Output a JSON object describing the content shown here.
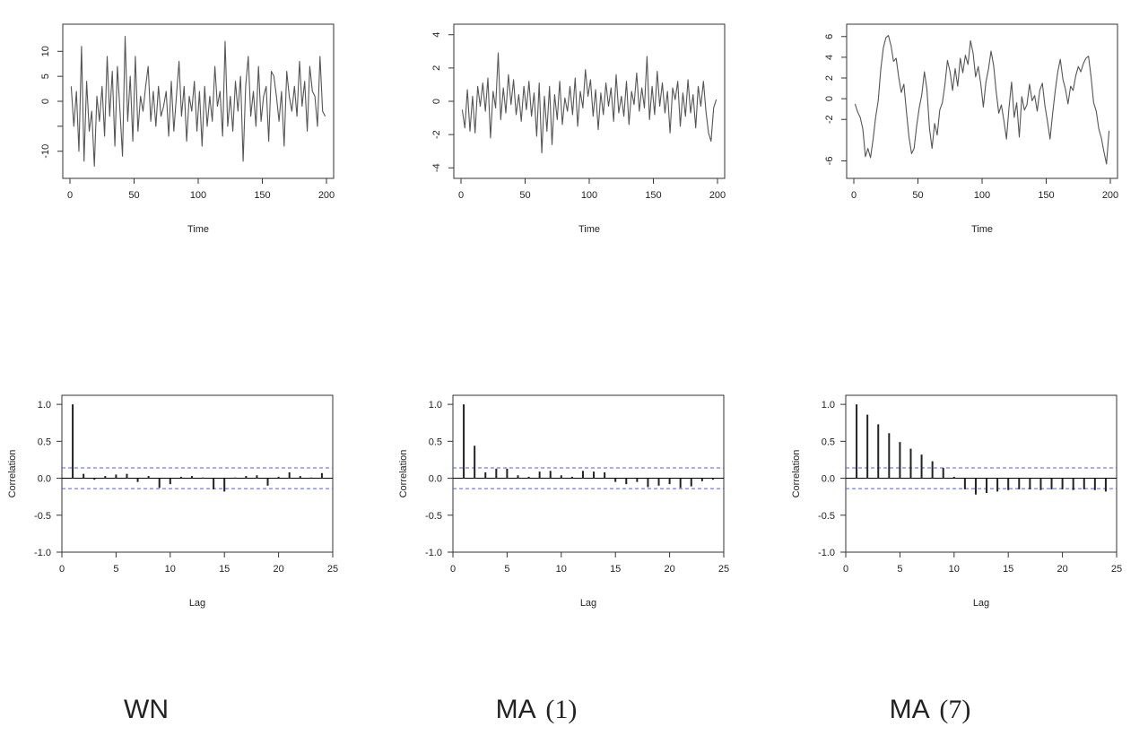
{
  "captions": [
    {
      "text": "WN"
    },
    {
      "text": "MA",
      "paren": "(1)"
    },
    {
      "text": "MA",
      "paren": "(7)"
    }
  ],
  "chart_data": [
    {
      "type": "line",
      "xlabel": "Time",
      "ylabel": "",
      "xlim": [
        0,
        200
      ],
      "ylim": [
        -14,
        14
      ],
      "xticks": [
        0,
        50,
        100,
        150,
        200
      ],
      "yticks": [
        -10,
        -5,
        0,
        5,
        10
      ],
      "yticklabels": [
        "-10",
        "",
        "0",
        "5",
        "10"
      ],
      "x": [
        1,
        3,
        5,
        7,
        9,
        11,
        13,
        15,
        17,
        19,
        21,
        23,
        25,
        27,
        29,
        31,
        33,
        35,
        37,
        39,
        41,
        43,
        45,
        47,
        49,
        51,
        53,
        55,
        57,
        59,
        61,
        63,
        65,
        67,
        69,
        71,
        73,
        75,
        77,
        79,
        81,
        83,
        85,
        87,
        89,
        91,
        93,
        95,
        97,
        99,
        101,
        103,
        105,
        107,
        109,
        111,
        113,
        115,
        117,
        119,
        121,
        123,
        125,
        127,
        129,
        131,
        133,
        135,
        137,
        139,
        141,
        143,
        145,
        147,
        149,
        151,
        153,
        155,
        157,
        159,
        161,
        163,
        165,
        167,
        169,
        171,
        173,
        175,
        177,
        179,
        181,
        183,
        185,
        187,
        189,
        191,
        193,
        195,
        197,
        199
      ],
      "y": [
        3,
        -5,
        2,
        -10,
        11,
        -12,
        4,
        -6,
        -2,
        -13,
        1,
        -4,
        3,
        -7,
        9,
        -3,
        6,
        -9,
        7,
        -2,
        -11,
        13,
        -4,
        5,
        -8,
        9,
        -6,
        1,
        -2,
        3,
        7,
        -4,
        2,
        -5,
        3,
        -3,
        -1,
        2,
        -7,
        4,
        -6,
        1,
        8,
        -3,
        3,
        -8,
        1,
        -2,
        4,
        -6,
        2,
        -9,
        3,
        -5,
        1,
        -4,
        7,
        -1,
        2,
        -7,
        12,
        -5,
        1,
        -6,
        4,
        -2,
        5,
        -12,
        3,
        9,
        -3,
        2,
        -5,
        7,
        -4,
        1,
        3,
        -8,
        6,
        5,
        1,
        -4,
        2,
        -9,
        6,
        1,
        -2,
        3,
        -3,
        8,
        -1,
        4,
        -6,
        7,
        2,
        1,
        -5,
        9,
        -2,
        -3
      ]
    },
    {
      "type": "line",
      "xlabel": "Time",
      "ylabel": "",
      "xlim": [
        0,
        200
      ],
      "ylim": [
        -4.2,
        4.2
      ],
      "xticks": [
        0,
        50,
        100,
        150,
        200
      ],
      "yticks": [
        -4,
        -2,
        0,
        2,
        4
      ],
      "x": [
        1,
        3,
        5,
        7,
        9,
        11,
        13,
        15,
        17,
        19,
        21,
        23,
        25,
        27,
        29,
        31,
        33,
        35,
        37,
        39,
        41,
        43,
        45,
        47,
        49,
        51,
        53,
        55,
        57,
        59,
        61,
        63,
        65,
        67,
        69,
        71,
        73,
        75,
        77,
        79,
        81,
        83,
        85,
        87,
        89,
        91,
        93,
        95,
        97,
        99,
        101,
        103,
        105,
        107,
        109,
        111,
        113,
        115,
        117,
        119,
        121,
        123,
        125,
        127,
        129,
        131,
        133,
        135,
        137,
        139,
        141,
        143,
        145,
        147,
        149,
        151,
        153,
        155,
        157,
        159,
        161,
        163,
        165,
        167,
        169,
        171,
        173,
        175,
        177,
        179,
        181,
        183,
        185,
        187,
        189,
        191,
        193,
        195,
        197,
        199
      ],
      "y": [
        -0.5,
        -1.6,
        0.7,
        -1.8,
        0.3,
        -1.9,
        0.9,
        -0.3,
        1.1,
        -0.6,
        1.4,
        -2.2,
        0.6,
        -0.4,
        2.9,
        -1.1,
        0.8,
        -0.7,
        1.6,
        -0.2,
        1.3,
        -0.8,
        0.4,
        -1.2,
        0.9,
        -0.5,
        1.2,
        -0.9,
        0.5,
        -2.1,
        1.1,
        -3.1,
        0.3,
        -1.8,
        0.9,
        -2.6,
        0.4,
        -1.1,
        1.2,
        -1.4,
        0.2,
        -0.6,
        0.9,
        -0.8,
        1.4,
        -1.5,
        0.6,
        -0.4,
        1.9,
        0.3,
        1.3,
        -0.9,
        0.7,
        -1.7,
        0.5,
        -0.8,
        1.1,
        -0.3,
        0.8,
        -1.2,
        1.6,
        -0.7,
        0.3,
        -0.9,
        1.2,
        -1.4,
        0.6,
        -0.2,
        1.7,
        -0.6,
        0.8,
        -0.4,
        2.7,
        -1.1,
        0.9,
        -0.8,
        1.8,
        -0.3,
        1.1,
        -0.7,
        0.6,
        -1.9,
        0.8,
        0.1,
        1.2,
        -1.5,
        0.5,
        -0.9,
        1.3,
        -0.7,
        0.4,
        -1.6,
        0.9,
        -0.3,
        1.2,
        -0.6,
        -1.9,
        -2.4,
        -0.4,
        0.1
      ]
    },
    {
      "type": "line",
      "xlabel": "Time",
      "ylabel": "",
      "xlim": [
        0,
        200
      ],
      "ylim": [
        -7,
        6.5
      ],
      "xticks": [
        0,
        50,
        100,
        150,
        200
      ],
      "yticks": [
        -6,
        -2,
        0,
        2,
        4,
        6
      ],
      "x": [
        1,
        3,
        5,
        7,
        9,
        11,
        13,
        15,
        17,
        19,
        21,
        23,
        25,
        27,
        29,
        31,
        33,
        35,
        37,
        39,
        41,
        43,
        45,
        47,
        49,
        51,
        53,
        55,
        57,
        59,
        61,
        63,
        65,
        67,
        69,
        71,
        73,
        75,
        77,
        79,
        81,
        83,
        85,
        87,
        89,
        91,
        93,
        95,
        97,
        99,
        101,
        103,
        105,
        107,
        109,
        111,
        113,
        115,
        117,
        119,
        121,
        123,
        125,
        127,
        129,
        131,
        133,
        135,
        137,
        139,
        141,
        143,
        145,
        147,
        149,
        151,
        153,
        155,
        157,
        159,
        161,
        163,
        165,
        167,
        169,
        171,
        173,
        175,
        177,
        179,
        181,
        183,
        185,
        187,
        189,
        191,
        193,
        195,
        197,
        199
      ],
      "y": [
        -0.5,
        -1.3,
        -1.8,
        -2.9,
        -5.6,
        -4.8,
        -5.7,
        -3.9,
        -1.8,
        -0.2,
        2.8,
        4.9,
        5.9,
        6.1,
        5.1,
        3.6,
        3.9,
        2.1,
        0.6,
        1.4,
        -1.2,
        -3.7,
        -5.3,
        -4.8,
        -2.6,
        -0.9,
        0.4,
        2.6,
        0.9,
        -2.9,
        -4.8,
        -2.4,
        -3.5,
        -1.1,
        -0.4,
        1.3,
        3.7,
        2.6,
        0.8,
        2.9,
        1.2,
        3.9,
        2.5,
        4.2,
        3.3,
        5.6,
        4.4,
        2.1,
        3.1,
        1.4,
        -0.8,
        1.6,
        2.9,
        4.6,
        3.2,
        0.7,
        -1.4,
        -0.6,
        -2.1,
        -3.9,
        -0.9,
        1.6,
        -1.8,
        -0.4,
        -3.7,
        0.2,
        -1.1,
        -0.6,
        1.4,
        -0.2,
        0.3,
        -1.2,
        0.8,
        1.5,
        -0.7,
        -2.2,
        -3.9,
        -1.4,
        0.7,
        2.6,
        3.8,
        1.9,
        0.9,
        -0.5,
        1.2,
        0.8,
        2.2,
        3.1,
        2.6,
        3.4,
        3.9,
        4.1,
        2.1,
        -0.4,
        -1.2,
        -2.9,
        -3.8,
        -5.1,
        -6.3,
        -3.1
      ]
    },
    {
      "type": "bar",
      "xlabel": "Lag",
      "ylabel": "Correlation",
      "xlim": [
        0,
        25
      ],
      "ylim": [
        -1,
        1.05
      ],
      "xticks": [
        0,
        5,
        10,
        15,
        20,
        25
      ],
      "yticks": [
        -1,
        -0.5,
        0,
        0.5,
        1
      ],
      "yticklabels": [
        "-1.0",
        "-0.5",
        "0.0",
        "0.5",
        "1.0"
      ],
      "confidence_band": 0.14,
      "lags": [
        1,
        2,
        3,
        4,
        5,
        6,
        7,
        8,
        9,
        10,
        11,
        12,
        13,
        14,
        15,
        16,
        17,
        18,
        19,
        20,
        21,
        22,
        23,
        24
      ],
      "acf": [
        1.0,
        0.06,
        -0.02,
        0.03,
        0.05,
        0.06,
        -0.05,
        0.03,
        -0.13,
        -0.08,
        0.02,
        0.03,
        0.01,
        -0.15,
        -0.18,
        0.01,
        0.03,
        0.04,
        -0.1,
        0.02,
        0.08,
        0.03,
        0.01,
        0.07
      ]
    },
    {
      "type": "bar",
      "xlabel": "Lag",
      "ylabel": "Correlation",
      "xlim": [
        0,
        25
      ],
      "ylim": [
        -1,
        1.05
      ],
      "xticks": [
        0,
        5,
        10,
        15,
        20,
        25
      ],
      "yticks": [
        -1,
        -0.5,
        0,
        0.5,
        1
      ],
      "yticklabels": [
        "-1.0",
        "-0.5",
        "0.0",
        "0.5",
        "1.0"
      ],
      "confidence_band": 0.14,
      "lags": [
        1,
        2,
        3,
        4,
        5,
        6,
        7,
        8,
        9,
        10,
        11,
        12,
        13,
        14,
        15,
        16,
        17,
        18,
        19,
        20,
        21,
        22,
        23,
        24
      ],
      "acf": [
        1.0,
        0.44,
        0.08,
        0.13,
        0.13,
        0.04,
        0.02,
        0.09,
        0.1,
        0.04,
        0.02,
        0.1,
        0.09,
        0.08,
        -0.05,
        -0.08,
        -0.05,
        -0.12,
        -0.1,
        -0.08,
        -0.13,
        -0.11,
        -0.04,
        -0.02
      ]
    },
    {
      "type": "bar",
      "xlabel": "Lag",
      "ylabel": "Correlation",
      "xlim": [
        0,
        25
      ],
      "ylim": [
        -1,
        1.05
      ],
      "xticks": [
        0,
        5,
        10,
        15,
        20,
        25
      ],
      "yticks": [
        -1,
        -0.5,
        0,
        0.5,
        1
      ],
      "yticklabels": [
        "-1.0",
        "-0.5",
        "0.0",
        "0.5",
        "1.0"
      ],
      "confidence_band": 0.14,
      "lags": [
        1,
        2,
        3,
        4,
        5,
        6,
        7,
        8,
        9,
        10,
        11,
        12,
        13,
        14,
        15,
        16,
        17,
        18,
        19,
        20,
        21,
        22,
        23,
        24
      ],
      "acf": [
        1.0,
        0.86,
        0.73,
        0.61,
        0.49,
        0.4,
        0.32,
        0.23,
        0.14,
        0.02,
        -0.15,
        -0.22,
        -0.2,
        -0.18,
        -0.16,
        -0.15,
        -0.15,
        -0.16,
        -0.15,
        -0.15,
        -0.16,
        -0.15,
        -0.16,
        -0.18
      ]
    }
  ],
  "colors": {
    "series_line": "#555555",
    "acf_bar": "#222222",
    "confidence_band": "#5555ff",
    "axis": "#333333"
  }
}
